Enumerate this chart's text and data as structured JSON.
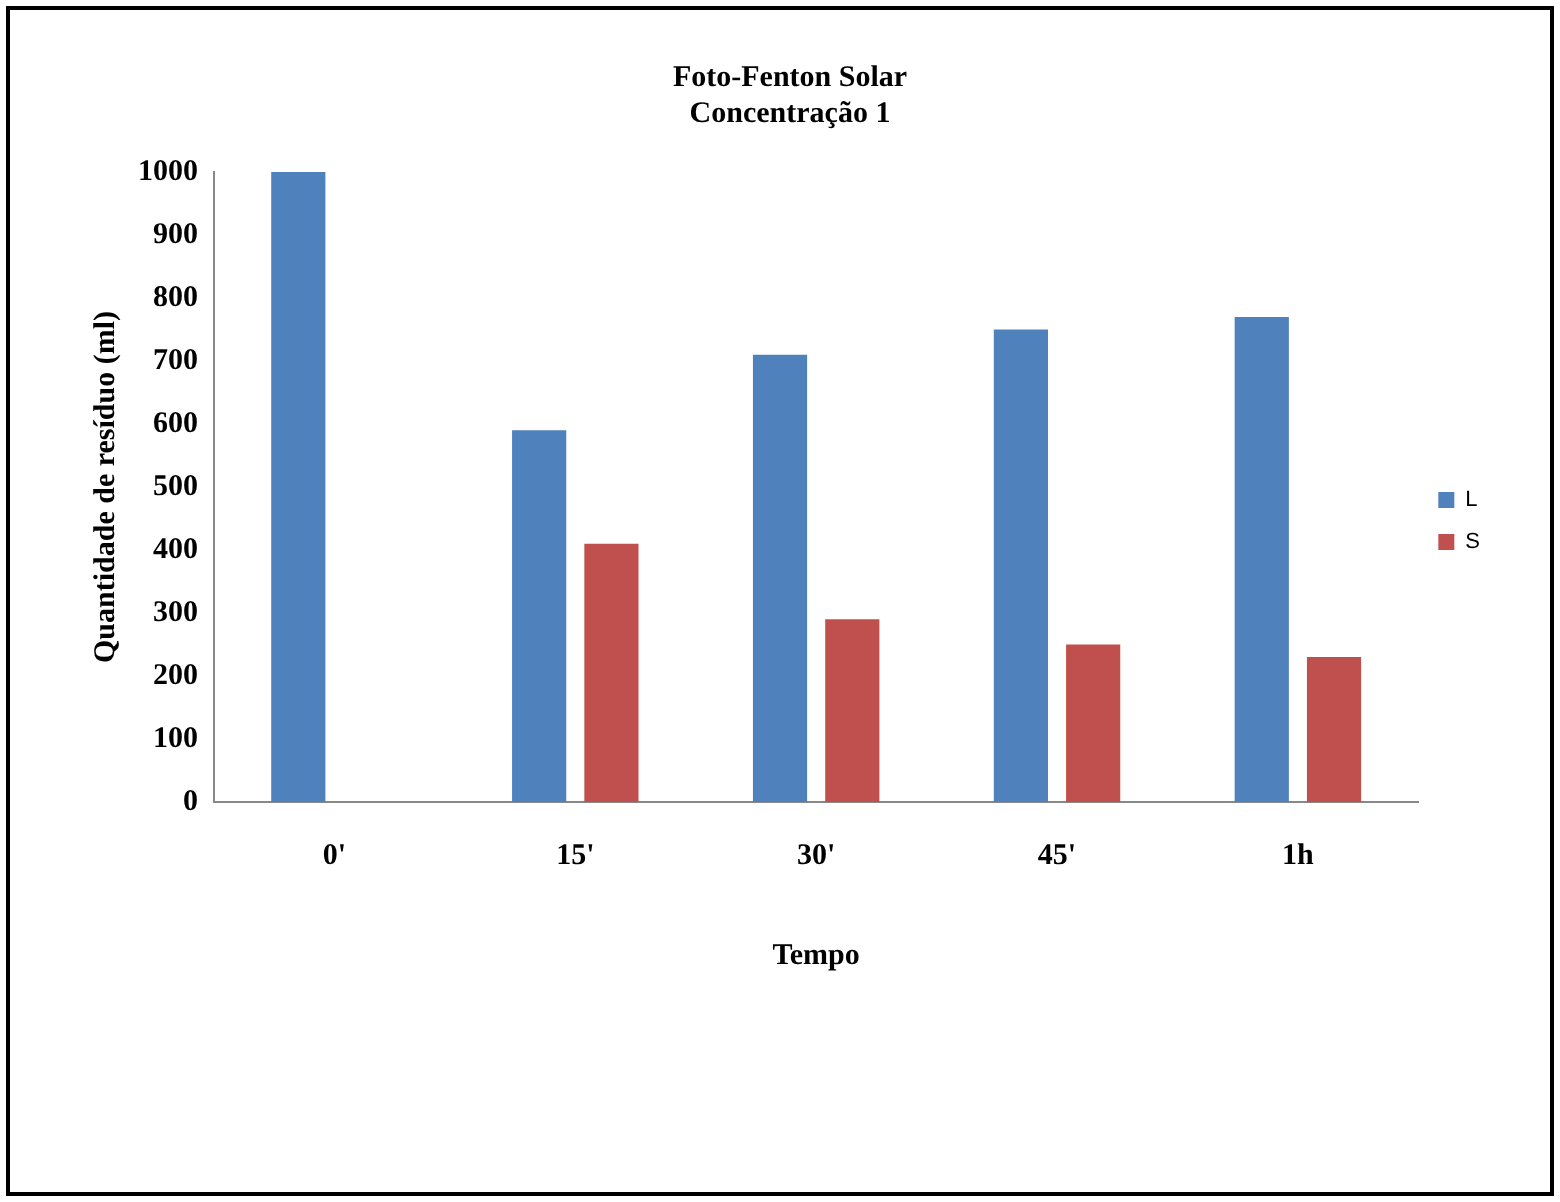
{
  "chart_data": {
    "type": "bar",
    "title": [
      "Foto-Fenton Solar",
      "Concentração 1"
    ],
    "xlabel": "Tempo",
    "ylabel": "Quantidade de resíduo (ml)",
    "categories": [
      "0'",
      "15'",
      "30'",
      "45'",
      "1h"
    ],
    "series": [
      {
        "name": "L",
        "color": "#4f81bd",
        "values": [
          1000,
          590,
          710,
          750,
          770
        ]
      },
      {
        "name": "S",
        "color": "#c0504d",
        "values": [
          0,
          410,
          290,
          250,
          230
        ]
      }
    ],
    "ylim": [
      0,
      1000
    ],
    "yticks": [
      0,
      100,
      200,
      300,
      400,
      500,
      600,
      700,
      800,
      900,
      1000
    ],
    "grid": false,
    "legend": "right"
  }
}
